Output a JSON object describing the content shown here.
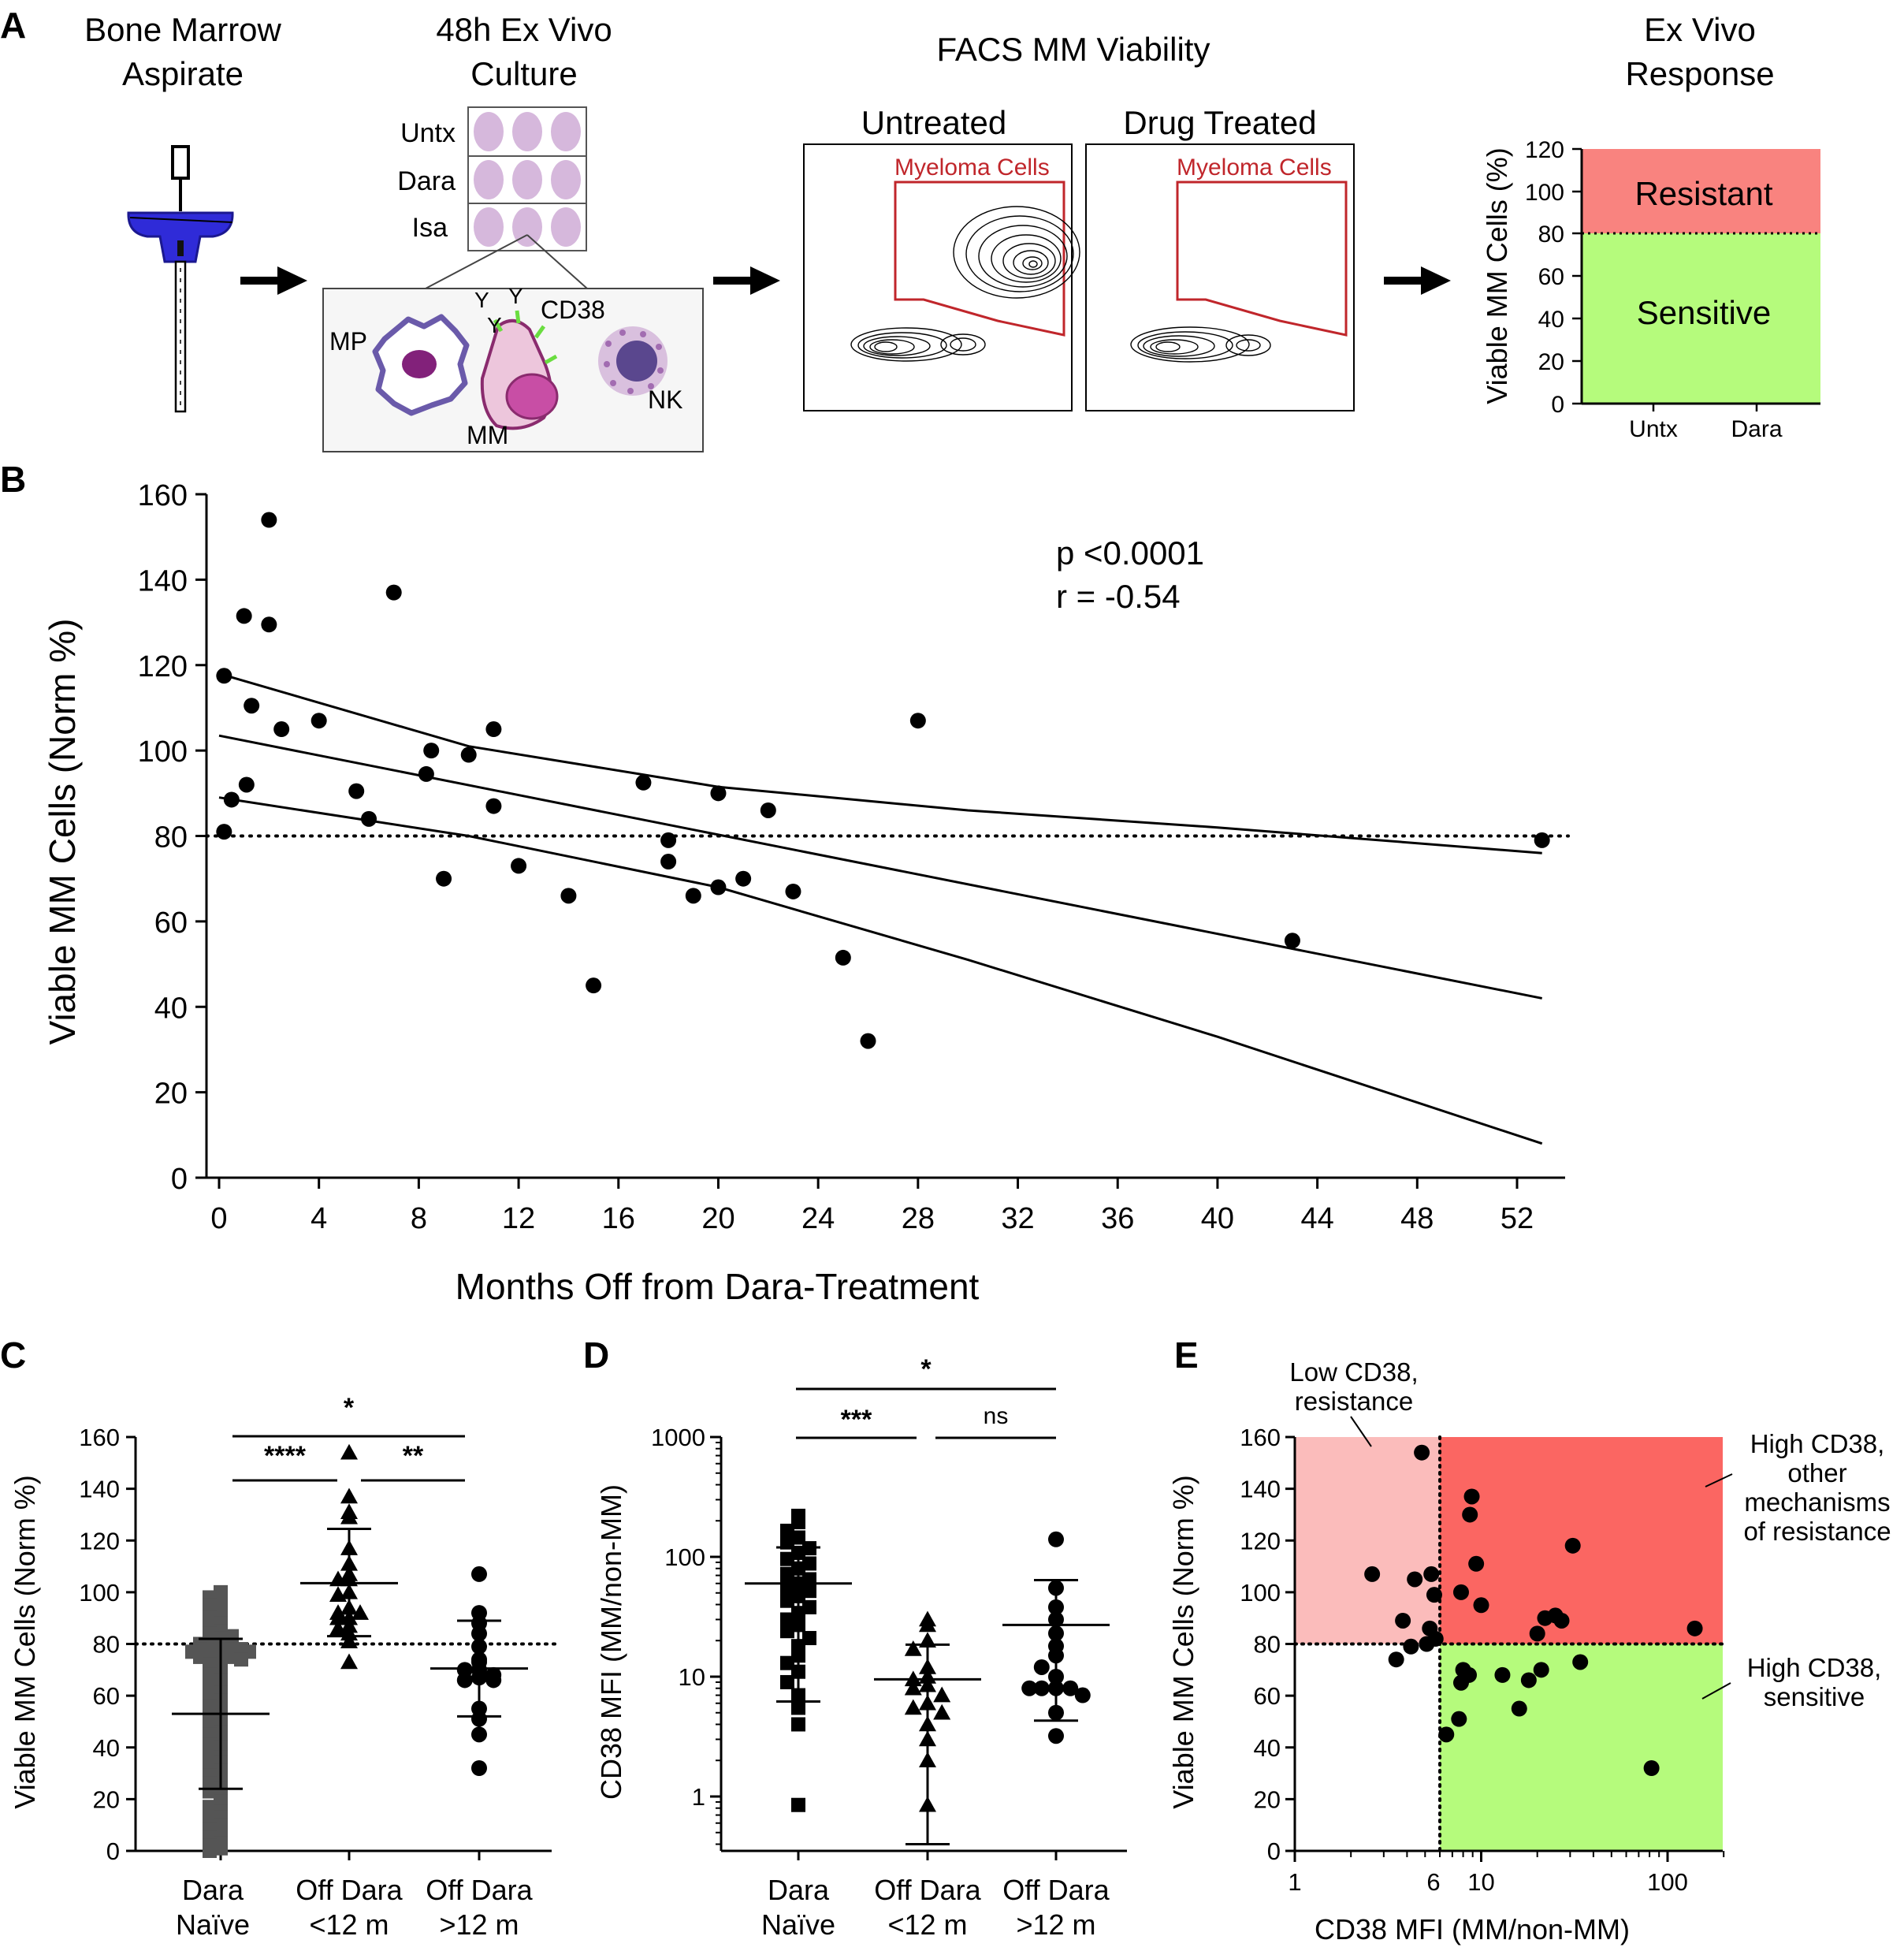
{
  "panel_letters": {
    "a": "A",
    "b": "B",
    "c": "C",
    "d": "D",
    "e": "E"
  },
  "panel_a": {
    "step1_title": [
      "Bone Marrow",
      "Aspirate"
    ],
    "step2_title": [
      "48h Ex Vivo",
      "Culture"
    ],
    "plate_rows": [
      "Untx",
      "Dara",
      "Isa"
    ],
    "cell_labels": {
      "mp": "MP",
      "mm": "MM",
      "nk": "NK",
      "cd38": "CD38"
    },
    "step3_title": "FACS MM Viability",
    "facs_panels": [
      "Untreated",
      "Drug Treated"
    ],
    "gate_label": "Myeloma Cells",
    "step4_title": [
      "Ex Vivo",
      "Response"
    ],
    "response_ylabel": "Viable MM Cells (%)",
    "response_yticks": [
      "0",
      "20",
      "40",
      "60",
      "80",
      "100",
      "120"
    ],
    "response_xticks": [
      "Untx",
      "Dara"
    ],
    "resistant_label": "Resistant",
    "sensitive_label": "Sensitive",
    "colors": {
      "resistant": "#f9837f",
      "sensitive": "#b5fb7c",
      "gate": "#c0262b",
      "syringe": "#2f2bd8",
      "well": "#d6b8dc"
    }
  },
  "chart_data": [
    {
      "panel": "B",
      "type": "scatter",
      "xlabel": "Months Off from Dara-Treatment",
      "ylabel": "Viable MM Cells (Norm %)",
      "xlim": [
        0,
        54
      ],
      "ylim": [
        0,
        160
      ],
      "xticks": [
        0,
        4,
        8,
        12,
        16,
        20,
        24,
        28,
        32,
        36,
        40,
        44,
        48,
        52
      ],
      "yticks": [
        0,
        20,
        40,
        60,
        80,
        100,
        120,
        140,
        160
      ],
      "annotations": [
        "p <0.0001",
        "r = -0.54"
      ],
      "threshold": 80,
      "regression": {
        "x": [
          0,
          53
        ],
        "y": [
          103.5,
          42
        ]
      },
      "ci_upper": [
        [
          0,
          118
        ],
        [
          10,
          101
        ],
        [
          20,
          91.5
        ],
        [
          30,
          86
        ],
        [
          40,
          82
        ],
        [
          53,
          76
        ]
      ],
      "ci_lower": [
        [
          0,
          89
        ],
        [
          10,
          80
        ],
        [
          20,
          68
        ],
        [
          30,
          51
        ],
        [
          40,
          33
        ],
        [
          53,
          8
        ]
      ],
      "points": [
        [
          0.2,
          117.5
        ],
        [
          0.2,
          81
        ],
        [
          0.5,
          88.5
        ],
        [
          1.0,
          131.5
        ],
        [
          1.1,
          92
        ],
        [
          1.3,
          110.5
        ],
        [
          2.0,
          154
        ],
        [
          2.0,
          129.5
        ],
        [
          2.5,
          105
        ],
        [
          4.0,
          107
        ],
        [
          5.5,
          90.5
        ],
        [
          6.0,
          84
        ],
        [
          7.0,
          137
        ],
        [
          8.3,
          94.5
        ],
        [
          8.5,
          100
        ],
        [
          9.0,
          70
        ],
        [
          10.0,
          99
        ],
        [
          11.0,
          105
        ],
        [
          11.0,
          87
        ],
        [
          12.0,
          73
        ],
        [
          14.0,
          66
        ],
        [
          15.0,
          45
        ],
        [
          17.0,
          92.5
        ],
        [
          18.0,
          79
        ],
        [
          18.0,
          74
        ],
        [
          19.0,
          66
        ],
        [
          20.0,
          90
        ],
        [
          20.0,
          68
        ],
        [
          21.0,
          70
        ],
        [
          22.0,
          86
        ],
        [
          23.0,
          67
        ],
        [
          25.0,
          51.5
        ],
        [
          26.0,
          32
        ],
        [
          28.0,
          107
        ],
        [
          43.0,
          55.5
        ],
        [
          53.0,
          79
        ]
      ]
    },
    {
      "panel": "C",
      "type": "scatter",
      "categories": [
        "Dara\nNaïve",
        "Off Dara\n<12 m",
        "Off Dara\n>12 m"
      ],
      "ylabel": "Viable MM Cells (Norm %)",
      "ylim": [
        0,
        160
      ],
      "yticks": [
        0,
        20,
        40,
        60,
        80,
        100,
        120,
        140,
        160
      ],
      "threshold": 80,
      "means": [
        53,
        103.5,
        70.5
      ],
      "sd_low": [
        24,
        83,
        52
      ],
      "sd_high": [
        82,
        124.5,
        89
      ],
      "significance": [
        {
          "label": "*",
          "from": 0,
          "to": 2
        },
        {
          "label": "****",
          "from": 0,
          "to": 1
        },
        {
          "label": "**",
          "from": 1,
          "to": 2
        }
      ],
      "series": [
        {
          "values": [
            100,
            98,
            96,
            95,
            93,
            91,
            90,
            88,
            86,
            85,
            84,
            83,
            82,
            81,
            80,
            80,
            79,
            79,
            78,
            78,
            78,
            77,
            77,
            76,
            76,
            75,
            75,
            74,
            73,
            72,
            70,
            68,
            66,
            65,
            63,
            61,
            60,
            58,
            56,
            55,
            53,
            51,
            50,
            48,
            46,
            45,
            43,
            41,
            40,
            38,
            36,
            34,
            33,
            31,
            29,
            28,
            26,
            24,
            23,
            21,
            19,
            17,
            15,
            13,
            12,
            10,
            8,
            6,
            5,
            3,
            2,
            1,
            0
          ]
        },
        {
          "values": [
            154,
            137,
            131,
            129,
            117,
            111,
            107,
            105,
            105,
            100,
            99,
            94,
            92,
            92,
            90,
            90,
            87,
            86,
            84,
            81,
            73
          ]
        },
        {
          "values": [
            107,
            92,
            88,
            84,
            79,
            74,
            73,
            70,
            70,
            68,
            67,
            66,
            66,
            55,
            51,
            45,
            32
          ]
        }
      ]
    },
    {
      "panel": "D",
      "type": "scatter",
      "categories": [
        "Dara\nNaïve",
        "Off Dara\n<12 m",
        "Off Dara\n>12 m"
      ],
      "ylabel": "CD38 MFI (MM/non-MM)",
      "yscale": "log",
      "ylim": [
        0.3,
        1000
      ],
      "yticks": [
        1,
        10,
        100,
        1000
      ],
      "geo_means": [
        60,
        9.5,
        27
      ],
      "sd_low": [
        6.2,
        0.4,
        4.3
      ],
      "sd_high": [
        120,
        18.5,
        64
      ],
      "significance": [
        {
          "label": "*",
          "from": 0,
          "to": 2
        },
        {
          "label": "***",
          "from": 0,
          "to": 1
        },
        {
          "label": "ns",
          "from": 1,
          "to": 2
        }
      ],
      "series": [
        {
          "values": [
            220,
            195,
            165,
            145,
            132,
            118,
            108,
            96,
            88,
            80,
            72,
            65,
            60,
            56,
            52,
            47,
            43,
            38,
            34,
            30,
            27,
            24,
            21,
            18,
            15,
            13,
            11,
            9,
            7,
            5.5,
            4,
            0.85
          ]
        },
        {
          "values": [
            30,
            27,
            20,
            17,
            12,
            10,
            9.5,
            8.5,
            8,
            7,
            6,
            5.5,
            5,
            4,
            3,
            2,
            0.85
          ]
        },
        {
          "values": [
            140,
            55,
            38,
            30,
            23,
            18,
            15,
            12,
            10,
            8,
            8,
            8,
            8,
            7,
            5,
            3.2
          ]
        }
      ]
    },
    {
      "panel": "E",
      "type": "scatter",
      "xlabel": "CD38 MFI (MM/non-MM)",
      "ylabel": "Viable MM Cells (Norm %)",
      "xscale": "log",
      "xlim": [
        1,
        200
      ],
      "ylim": [
        0,
        160
      ],
      "xticks": [
        1,
        6,
        10,
        100
      ],
      "yticks": [
        0,
        20,
        40,
        60,
        80,
        100,
        120,
        140,
        160
      ],
      "x_threshold": 6,
      "y_threshold": 80,
      "region_labels": {
        "low_resistant": [
          "Low CD38,",
          "resistance"
        ],
        "high_resistant": [
          "High CD38,",
          "other",
          "mechanisms",
          "of resistance"
        ],
        "high_sensitive": [
          "High CD38,",
          "sensitive"
        ]
      },
      "region_colors": {
        "low_resistant": "#fbbcbb",
        "high_resistant": "#fb6662",
        "high_sensitive": "#b5fb7c"
      },
      "points": [
        [
          4.8,
          154
        ],
        [
          8.9,
          137
        ],
        [
          8.7,
          130
        ],
        [
          31,
          118
        ],
        [
          9.4,
          111
        ],
        [
          2.6,
          107
        ],
        [
          4.4,
          105
        ],
        [
          5.4,
          107
        ],
        [
          5.6,
          99
        ],
        [
          7.8,
          100
        ],
        [
          10,
          95
        ],
        [
          3.8,
          89
        ],
        [
          25,
          91
        ],
        [
          27,
          89
        ],
        [
          22,
          90
        ],
        [
          5.3,
          86
        ],
        [
          5.7,
          82
        ],
        [
          20,
          84
        ],
        [
          140,
          86
        ],
        [
          4.2,
          79
        ],
        [
          5.1,
          80
        ],
        [
          3.5,
          74
        ],
        [
          34,
          73
        ],
        [
          8,
          70
        ],
        [
          8.6,
          68
        ],
        [
          13,
          68
        ],
        [
          21,
          70
        ],
        [
          7.8,
          65
        ],
        [
          18,
          66
        ],
        [
          16,
          55
        ],
        [
          7.6,
          51
        ],
        [
          6.5,
          45
        ],
        [
          82,
          32
        ]
      ]
    }
  ]
}
